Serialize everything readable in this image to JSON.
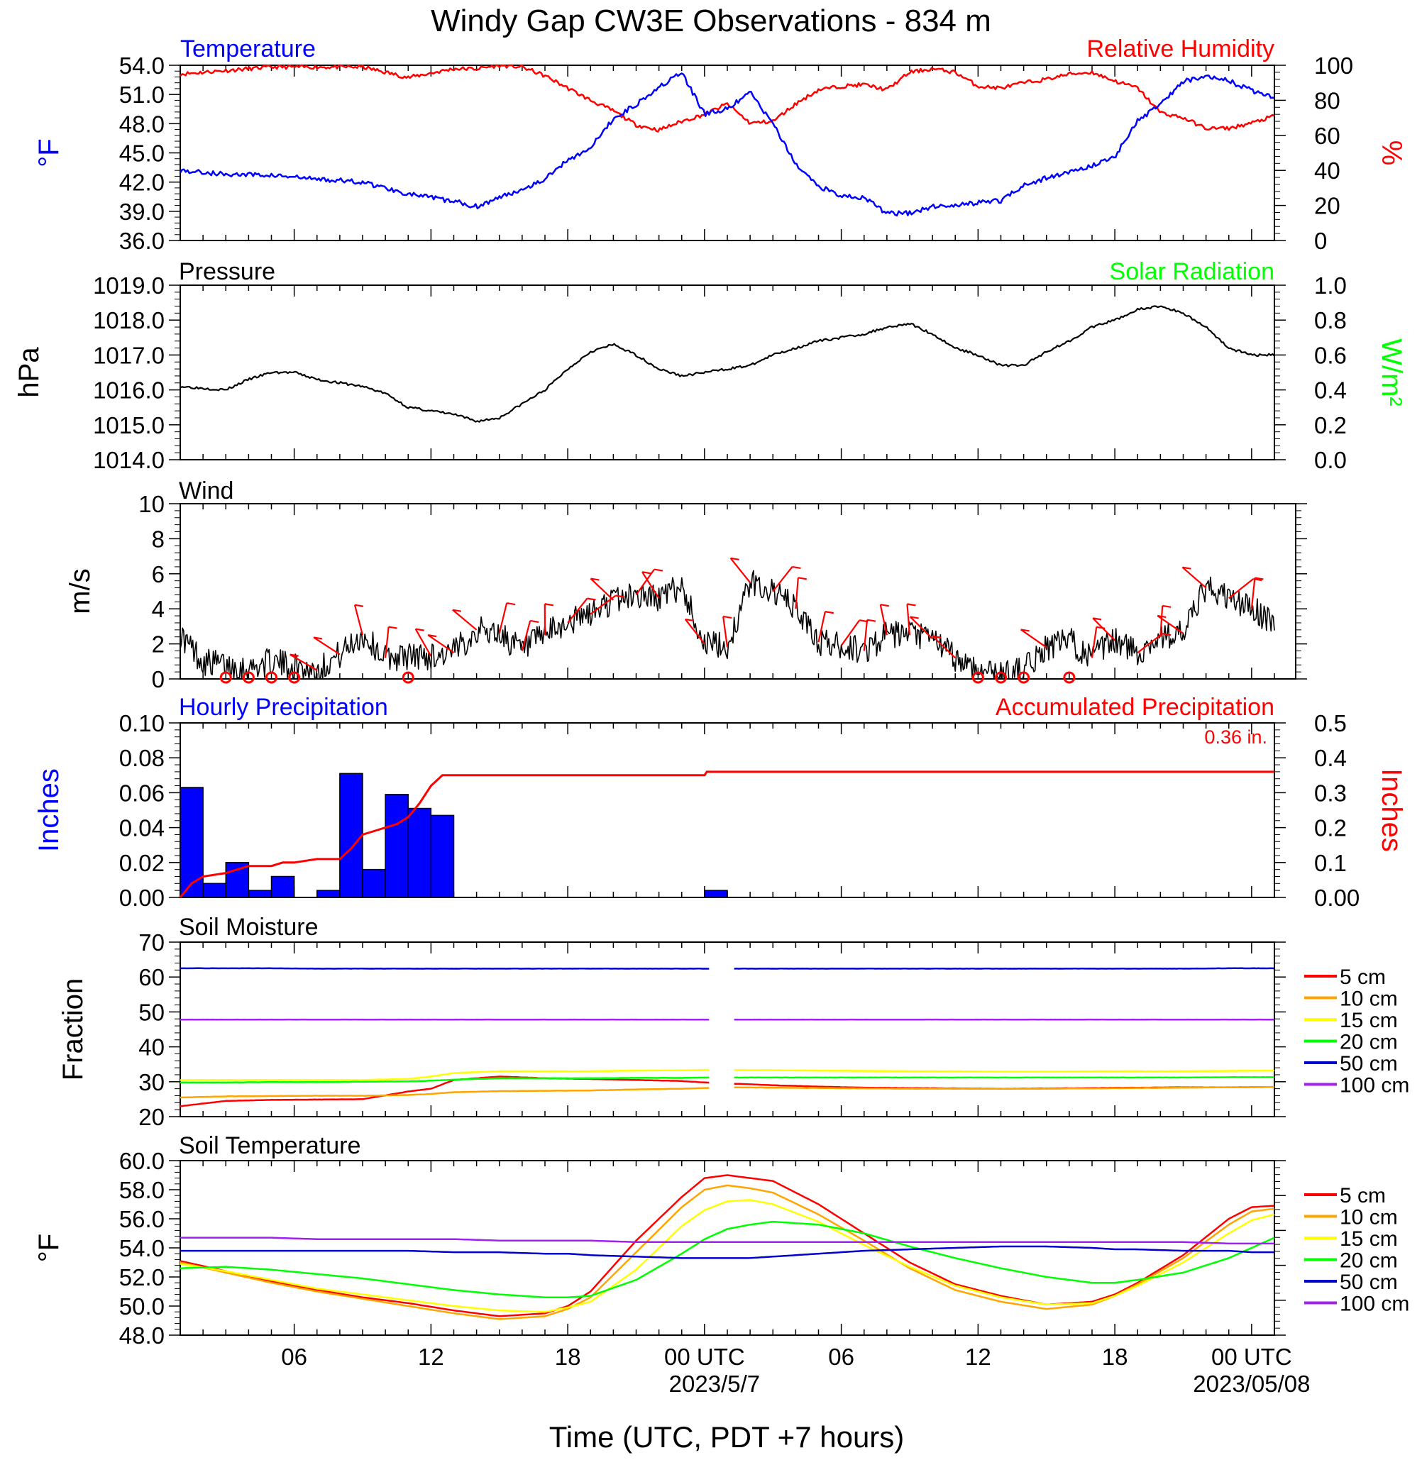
{
  "title": "Windy Gap CW3E Observations - 834 m",
  "xlabel": "Time (UTC, PDT +7 hours)",
  "x_axis": {
    "range_hours": [
      0,
      48
    ],
    "ticks": [
      {
        "h": 5,
        "label": "06"
      },
      {
        "h": 11,
        "label": "12"
      },
      {
        "h": 17,
        "label": "18"
      },
      {
        "h": 23,
        "label": "00 UTC",
        "sub": "2023/5/7"
      },
      {
        "h": 29,
        "label": "06"
      },
      {
        "h": 35,
        "label": "12"
      },
      {
        "h": 41,
        "label": "18"
      },
      {
        "h": 47,
        "label": "00 UTC",
        "sub": "2023/05/08"
      }
    ]
  },
  "colors": {
    "blue": "#0000ff",
    "red": "#ff0000",
    "green": "#00ff00",
    "black": "#000000",
    "orange": "#ffa500",
    "yellow": "#ffff00",
    "darkblue": "#0000cc",
    "purple": "#a020f0"
  },
  "panels": {
    "temp_rh": {
      "left_title": "Temperature",
      "right_title": "Relative Humidity",
      "left_unit": "°F",
      "right_unit": "%",
      "left_ticks": [
        "54.0",
        "51.0",
        "48.0",
        "45.0",
        "42.0",
        "39.0",
        "36.0"
      ],
      "right_ticks": [
        "100",
        "80",
        "60",
        "40",
        "20",
        "0"
      ]
    },
    "pressure": {
      "left_title": "Pressure",
      "right_title": "Solar Radiation",
      "left_unit": "hPa",
      "right_unit": "W/m²",
      "left_ticks": [
        "1019.0",
        "1018.0",
        "1017.0",
        "1016.0",
        "1015.0",
        "1014.0"
      ],
      "right_ticks": [
        "1.0",
        "0.8",
        "0.6",
        "0.4",
        "0.2",
        "0.0"
      ]
    },
    "wind": {
      "left_title": "Wind",
      "left_unit": "m/s",
      "left_ticks": [
        "10",
        "8",
        "6",
        "4",
        "2",
        "0"
      ]
    },
    "precip": {
      "left_title": "Hourly Precipitation",
      "right_title": "Accumulated Precipitation",
      "total_label": "0.36 in.",
      "left_unit": "Inches",
      "right_unit": "Inches",
      "left_ticks": [
        "0.10",
        "0.08",
        "0.06",
        "0.04",
        "0.02",
        "0.00"
      ],
      "right_ticks": [
        "0.5",
        "0.4",
        "0.3",
        "0.2",
        "0.1",
        "0.00"
      ]
    },
    "soil_moisture": {
      "left_title": "Soil Moisture",
      "left_unit": "Fraction",
      "left_ticks": [
        "70",
        "60",
        "50",
        "40",
        "30",
        "20"
      ],
      "legend": [
        "5 cm",
        "10 cm",
        "15 cm",
        "20 cm",
        "50 cm",
        "100 cm"
      ]
    },
    "soil_temp": {
      "left_title": "Soil Temperature",
      "left_unit": "°F",
      "left_ticks": [
        "60.0",
        "58.0",
        "56.0",
        "54.0",
        "52.0",
        "50.0",
        "48.0"
      ],
      "legend": [
        "5 cm",
        "10 cm",
        "15 cm",
        "20 cm",
        "50 cm",
        "100 cm"
      ]
    }
  },
  "chart_data": [
    {
      "type": "line",
      "title": "Temperature / Relative Humidity",
      "x_hours": [
        0,
        2,
        4,
        6,
        8,
        10,
        12,
        13,
        14,
        15,
        16,
        17,
        18,
        19,
        20,
        21,
        22,
        23,
        24,
        25,
        26,
        27,
        28,
        29,
        30,
        31,
        32,
        33,
        34,
        35,
        36,
        37,
        38,
        39,
        40,
        41,
        42,
        43,
        44,
        45,
        46,
        47,
        48
      ],
      "series": [
        {
          "name": "Temperature",
          "axis": "left",
          "ylim": [
            36,
            54
          ],
          "values": [
            43.2,
            42.8,
            42.7,
            42.3,
            42.0,
            40.8,
            40.0,
            39.5,
            40.4,
            41.3,
            42.3,
            44.3,
            45.5,
            48.5,
            50.0,
            51.8,
            53.2,
            49.0,
            49.5,
            51.2,
            48.0,
            43.8,
            41.6,
            40.6,
            40.4,
            38.8,
            38.8,
            39.5,
            39.6,
            39.9,
            40.1,
            41.7,
            42.4,
            43.0,
            43.7,
            44.6,
            48.3,
            50.0,
            52.3,
            53.0,
            52.4,
            51.4,
            50.8
          ]
        },
        {
          "name": "Relative Humidity",
          "axis": "right",
          "ylim": [
            0,
            100
          ],
          "values": [
            95,
            97,
            99,
            99,
            99,
            93,
            98,
            98,
            100,
            99,
            94,
            87,
            80,
            74,
            66,
            63,
            68,
            72,
            78,
            67,
            68,
            78,
            86,
            88,
            89,
            86,
            96,
            98,
            96,
            88,
            87,
            90,
            92,
            95,
            96,
            91,
            87,
            73,
            70,
            64,
            64,
            67,
            71
          ]
        }
      ]
    },
    {
      "type": "line",
      "title": "Pressure",
      "x_hours": [
        0,
        2,
        3,
        4,
        5,
        6,
        8,
        9,
        10,
        11,
        12,
        13,
        14,
        15,
        16,
        17,
        18,
        19,
        20,
        21,
        22,
        23,
        24,
        25,
        26,
        27,
        28,
        29,
        30,
        31,
        32,
        33,
        34,
        35,
        36,
        37,
        38,
        39,
        40,
        41,
        42,
        43,
        44,
        45,
        46,
        47,
        48
      ],
      "series": [
        {
          "name": "Pressure",
          "axis": "left",
          "ylim": [
            1014,
            1019
          ],
          "values": [
            1016.1,
            1016.0,
            1016.3,
            1016.5,
            1016.5,
            1016.3,
            1016.1,
            1015.9,
            1015.5,
            1015.4,
            1015.3,
            1015.1,
            1015.2,
            1015.6,
            1016.0,
            1016.6,
            1017.1,
            1017.3,
            1017.0,
            1016.6,
            1016.4,
            1016.5,
            1016.6,
            1016.7,
            1017.0,
            1017.2,
            1017.4,
            1017.5,
            1017.6,
            1017.8,
            1017.9,
            1017.6,
            1017.2,
            1017.0,
            1016.7,
            1016.7,
            1017.1,
            1017.4,
            1017.8,
            1018.0,
            1018.3,
            1018.4,
            1018.2,
            1017.8,
            1017.2,
            1017.0,
            1017.0
          ]
        }
      ]
    },
    {
      "type": "line",
      "title": "Wind",
      "x_hours": [
        0,
        1,
        2,
        3,
        4,
        5,
        6,
        7,
        8,
        9,
        10,
        11,
        12,
        13,
        14,
        15,
        16,
        17,
        18,
        19,
        20,
        21,
        22,
        23,
        24,
        25,
        26,
        27,
        28,
        29,
        30,
        31,
        32,
        33,
        34,
        35,
        36,
        37,
        38,
        39,
        40,
        41,
        42,
        43,
        44,
        45,
        46,
        47,
        48
      ],
      "series": [
        {
          "name": "Wind speed",
          "axis": "left",
          "ylim": [
            0,
            10
          ],
          "values": [
            2.5,
            1.0,
            0.8,
            0.6,
            1.0,
            0.7,
            0.5,
            1.4,
            2.5,
            1.2,
            1.3,
            1.3,
            1.5,
            2.8,
            2.6,
            1.6,
            2.5,
            3.2,
            3.7,
            4.5,
            4.8,
            4.6,
            5.3,
            2.0,
            1.8,
            5.5,
            5.0,
            4.0,
            2.1,
            1.9,
            1.6,
            2.5,
            2.5,
            2.3,
            1.2,
            0.5,
            0.3,
            0.5,
            1.8,
            2.2,
            1.2,
            2.2,
            1.5,
            2.4,
            2.6,
            5.2,
            4.6,
            4.0,
            3.2
          ]
        }
      ],
      "barb_calm_hours": [
        2,
        3,
        4,
        5,
        10,
        35,
        36,
        37,
        39
      ],
      "barb_hours": [
        6,
        7,
        8,
        9,
        11,
        12,
        13,
        14,
        15,
        16,
        17,
        18,
        19,
        20,
        21,
        23,
        24,
        25,
        26,
        27,
        28,
        29,
        30,
        31,
        32,
        33,
        34,
        38,
        40,
        41,
        42,
        43,
        44,
        45,
        46,
        47
      ]
    },
    {
      "type": "bar",
      "title": "Hourly Precipitation / Accumulated Precipitation",
      "bar_hours": [
        0,
        1,
        2,
        3,
        4,
        6,
        7,
        8,
        9,
        10,
        11,
        12,
        23
      ],
      "series": [
        {
          "name": "Hourly Precipitation",
          "axis": "left",
          "ylim": [
            0,
            0.1
          ],
          "values": [
            0.063,
            0.008,
            0.02,
            0.004,
            0.012,
            0.004,
            0.071,
            0.016,
            0.059,
            0.051,
            0.047,
            0.0,
            0.004
          ]
        },
        {
          "name": "Accumulated Precipitation",
          "axis": "right",
          "ylim": [
            0,
            0.5
          ],
          "type": "line",
          "x_hours": [
            0,
            0.5,
            1,
            2,
            3,
            4,
            4.5,
            5,
            6,
            7,
            7.5,
            8,
            8.5,
            9,
            9.5,
            10,
            10.5,
            11,
            11.5,
            12,
            13,
            23,
            23.1,
            48
          ],
          "values": [
            0.0,
            0.04,
            0.06,
            0.07,
            0.09,
            0.09,
            0.1,
            0.1,
            0.11,
            0.11,
            0.14,
            0.18,
            0.19,
            0.2,
            0.21,
            0.23,
            0.27,
            0.32,
            0.35,
            0.35,
            0.35,
            0.35,
            0.36,
            0.36
          ]
        }
      ]
    },
    {
      "type": "line",
      "title": "Soil Moisture",
      "x_hours": [
        0,
        2,
        4,
        6,
        8,
        10,
        11,
        12,
        14,
        16,
        18,
        20,
        22,
        23,
        24,
        26,
        28,
        30,
        32,
        34,
        36,
        38,
        40,
        42,
        44,
        46,
        48
      ],
      "gap_hours": [
        23.2,
        24.3
      ],
      "ylim": [
        20,
        70
      ],
      "series": [
        {
          "name": "5 cm",
          "values": [
            23.0,
            24.5,
            24.8,
            24.9,
            25.0,
            27.2,
            28.0,
            30.5,
            31.5,
            31.0,
            30.8,
            30.5,
            30.2,
            29.8,
            29.5,
            29.0,
            28.6,
            28.3,
            28.2,
            28.1,
            28.0,
            28.1,
            28.2,
            28.3,
            28.4,
            28.4,
            28.5
          ]
        },
        {
          "name": "10 cm",
          "values": [
            25.5,
            25.8,
            25.9,
            26.0,
            26.0,
            26.2,
            26.5,
            27.0,
            27.3,
            27.4,
            27.5,
            27.8,
            28.0,
            28.2,
            28.4,
            28.3,
            28.2,
            28.1,
            28.0,
            28.0,
            28.0,
            28.0,
            28.1,
            28.2,
            28.3,
            28.4,
            28.5
          ]
        },
        {
          "name": "15 cm",
          "values": [
            30.5,
            30.5,
            30.5,
            30.5,
            30.5,
            30.8,
            31.5,
            32.5,
            33.0,
            33.0,
            33.0,
            33.2,
            33.3,
            33.4,
            33.4,
            33.3,
            33.2,
            33.1,
            33.0,
            33.0,
            32.9,
            32.9,
            33.0,
            33.0,
            33.0,
            33.1,
            33.2
          ]
        },
        {
          "name": "20 cm",
          "values": [
            29.8,
            29.8,
            29.9,
            29.9,
            30.0,
            30.1,
            30.3,
            30.6,
            31.0,
            31.0,
            31.0,
            31.1,
            31.1,
            31.2,
            31.2,
            31.2,
            31.2,
            31.2,
            31.2,
            31.2,
            31.2,
            31.2,
            31.2,
            31.2,
            31.2,
            31.3,
            31.3
          ]
        },
        {
          "name": "50 cm",
          "values": [
            62.5,
            62.5,
            62.5,
            62.4,
            62.4,
            62.4,
            62.4,
            62.4,
            62.4,
            62.4,
            62.4,
            62.4,
            62.4,
            62.4,
            62.4,
            62.4,
            62.4,
            62.4,
            62.4,
            62.4,
            62.4,
            62.4,
            62.4,
            62.4,
            62.4,
            62.5,
            62.5
          ]
        },
        {
          "name": "100 cm",
          "values": [
            47.8,
            47.8,
            47.8,
            47.8,
            47.8,
            47.8,
            47.8,
            47.8,
            47.8,
            47.8,
            47.8,
            47.8,
            47.8,
            47.8,
            47.8,
            47.8,
            47.8,
            47.8,
            47.8,
            47.8,
            47.8,
            47.8,
            47.8,
            47.8,
            47.8,
            47.8,
            47.8
          ]
        }
      ]
    },
    {
      "type": "line",
      "title": "Soil Temperature",
      "x_hours": [
        0,
        2,
        4,
        6,
        8,
        10,
        12,
        14,
        16,
        17,
        18,
        20,
        22,
        23,
        24,
        25,
        26,
        28,
        30,
        32,
        34,
        36,
        38,
        40,
        41,
        42,
        44,
        46,
        47,
        48
      ],
      "ylim": [
        48,
        60
      ],
      "series": [
        {
          "name": "5 cm",
          "values": [
            53.1,
            52.4,
            51.7,
            51.1,
            50.6,
            50.2,
            49.7,
            49.3,
            49.5,
            50.0,
            51.0,
            54.5,
            57.5,
            58.8,
            59.0,
            58.8,
            58.6,
            57.0,
            55.0,
            53.0,
            51.5,
            50.7,
            50.1,
            50.3,
            50.8,
            51.6,
            53.5,
            56.0,
            56.8,
            56.9
          ]
        },
        {
          "name": "10 cm",
          "values": [
            53.0,
            52.3,
            51.6,
            51.0,
            50.5,
            50.0,
            49.5,
            49.1,
            49.3,
            49.8,
            50.6,
            53.7,
            56.8,
            58.0,
            58.3,
            58.1,
            57.8,
            56.3,
            54.5,
            52.6,
            51.1,
            50.3,
            49.8,
            50.1,
            50.7,
            51.5,
            53.3,
            55.6,
            56.5,
            56.7
          ]
        },
        {
          "name": "15 cm",
          "values": [
            52.9,
            52.4,
            51.8,
            51.2,
            50.8,
            50.4,
            50.0,
            49.7,
            49.6,
            49.9,
            50.3,
            52.5,
            55.5,
            56.6,
            57.2,
            57.3,
            57.0,
            55.8,
            54.2,
            52.7,
            51.4,
            50.6,
            50.1,
            50.2,
            50.7,
            51.4,
            53.0,
            55.0,
            55.9,
            56.3
          ]
        },
        {
          "name": "20 cm",
          "values": [
            52.6,
            52.7,
            52.5,
            52.2,
            51.9,
            51.5,
            51.1,
            50.8,
            50.6,
            50.6,
            50.7,
            51.8,
            53.6,
            54.6,
            55.3,
            55.6,
            55.8,
            55.6,
            55.0,
            54.1,
            53.3,
            52.6,
            52.0,
            51.6,
            51.6,
            51.8,
            52.3,
            53.3,
            54.0,
            54.7
          ]
        },
        {
          "name": "50 cm",
          "values": [
            53.8,
            53.8,
            53.8,
            53.8,
            53.8,
            53.8,
            53.7,
            53.7,
            53.6,
            53.6,
            53.5,
            53.4,
            53.3,
            53.3,
            53.3,
            53.3,
            53.4,
            53.6,
            53.8,
            53.9,
            54.0,
            54.1,
            54.1,
            54.0,
            53.9,
            53.9,
            53.8,
            53.8,
            53.7,
            53.7
          ]
        },
        {
          "name": "100 cm",
          "values": [
            54.7,
            54.7,
            54.7,
            54.6,
            54.6,
            54.6,
            54.6,
            54.5,
            54.5,
            54.5,
            54.5,
            54.4,
            54.4,
            54.4,
            54.4,
            54.4,
            54.4,
            54.4,
            54.4,
            54.4,
            54.4,
            54.4,
            54.4,
            54.4,
            54.4,
            54.4,
            54.4,
            54.3,
            54.3,
            54.3
          ]
        }
      ]
    }
  ]
}
